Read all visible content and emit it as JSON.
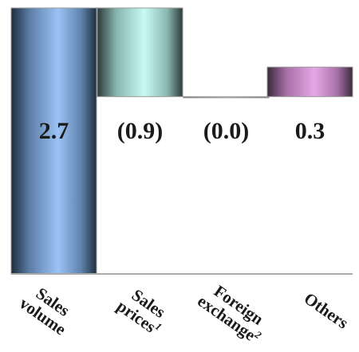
{
  "chart_data": {
    "type": "bar",
    "subtype": "waterfall",
    "categories": [
      {
        "lines": [
          "Sales",
          "volume"
        ],
        "sup": ""
      },
      {
        "lines": [
          "Sales",
          "prices"
        ],
        "sup": "1"
      },
      {
        "lines": [
          "Foreign",
          "exchange"
        ],
        "sup": "2"
      },
      {
        "lines": [
          "Others"
        ],
        "sup": ""
      }
    ],
    "values": [
      2.7,
      -0.9,
      0.0,
      0.3
    ],
    "value_labels": [
      "2.7",
      "(0.9)",
      "(0.0)",
      "0.3"
    ],
    "ylim": [
      0,
      2.7
    ],
    "grid": false,
    "legend": "none",
    "colors": {
      "sales_volume": "#8fb8f0",
      "sales_prices": "#bff0ea",
      "foreign_exchange": "#aaaaaa",
      "others": "#cf93cf",
      "connector": "#aaaaaa",
      "baseline": "#aaaaaa"
    }
  }
}
